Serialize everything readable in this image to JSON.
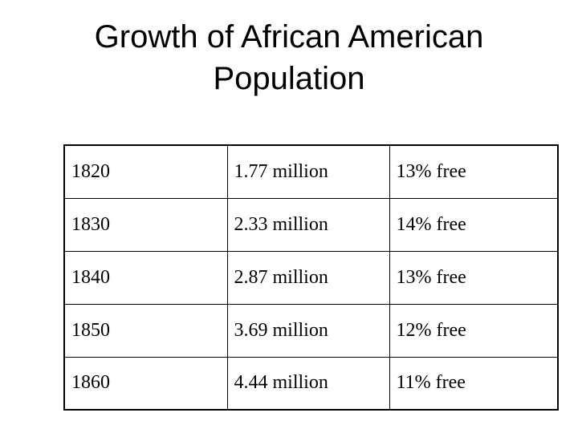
{
  "title": {
    "line1": "Growth of African American",
    "line2": "Population"
  },
  "table": {
    "rows": [
      {
        "year": "1820",
        "population": "1.77 million",
        "free": "13% free"
      },
      {
        "year": "1830",
        "population": "2.33 million",
        "free": "14% free"
      },
      {
        "year": "1840",
        "population": "2.87 million",
        "free": "13% free"
      },
      {
        "year": "1850",
        "population": "3.69 million",
        "free": "12% free"
      },
      {
        "year": "1860",
        "population": "4.44 million",
        "free": "11% free"
      }
    ]
  }
}
